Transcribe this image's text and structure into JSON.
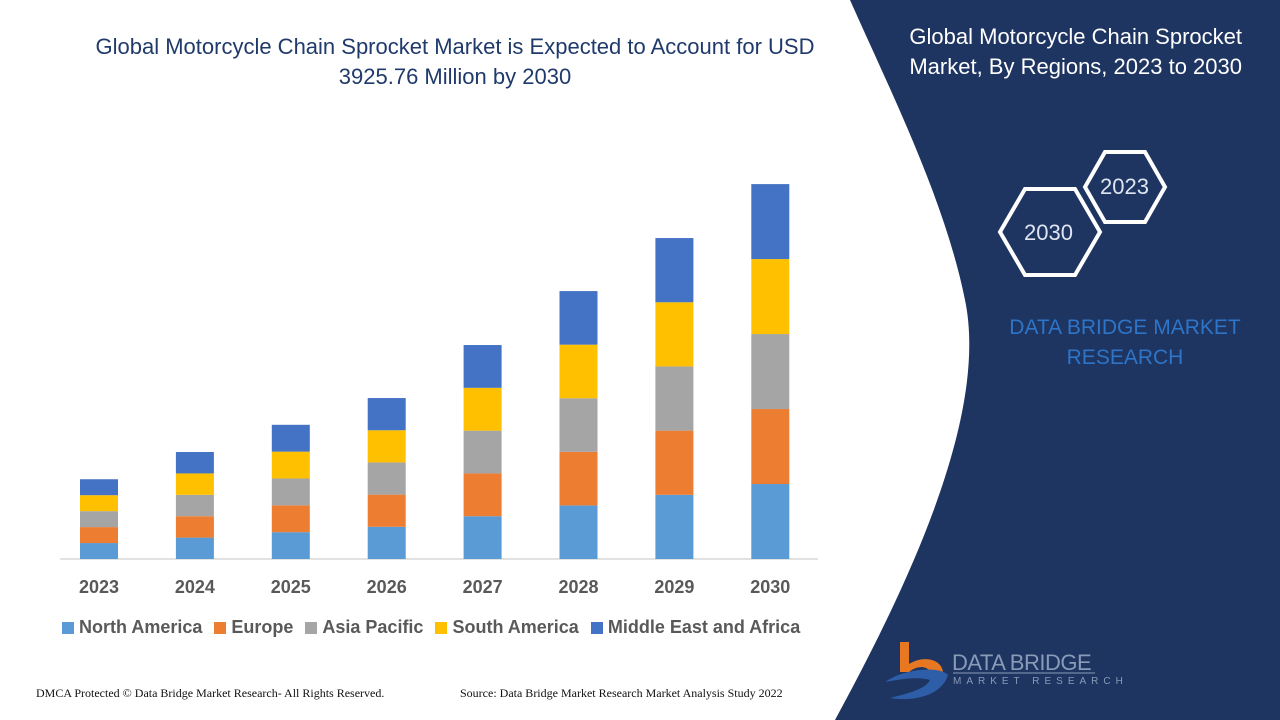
{
  "header": {
    "title": "Global Motorcycle Chain Sprocket Market is Expected to Account for USD 3925.76 Million by 2030"
  },
  "side_panel": {
    "title": "Global Motorcycle Chain Sprocket Market, By Regions, 2023 to 2030",
    "hex_front": "2030",
    "hex_back": "2023",
    "brand": "DATA BRIDGE MARKET RESEARCH"
  },
  "logo": {
    "name": "DATA BRIDGE",
    "tagline": "MARKET RESEARCH"
  },
  "footer": {
    "copyright": "DMCA Protected © Data Bridge Market Research- All Rights Reserved.",
    "source": "Source: Data Bridge Market Research Market Analysis Study 2022"
  },
  "colors": {
    "panel": "#1e3461",
    "accent": "#e87722"
  },
  "chart_data": {
    "type": "bar",
    "stacked": true,
    "grid": false,
    "legend_position": "bottom",
    "categories": [
      "2023",
      "2024",
      "2025",
      "2026",
      "2027",
      "2028",
      "2029",
      "2030"
    ],
    "series": [
      {
        "name": "North America",
        "color": "#5b9bd5",
        "values": [
          167,
          224,
          281,
          337,
          448,
          561,
          672,
          785
        ]
      },
      {
        "name": "Europe",
        "color": "#ed7d31",
        "values": [
          167,
          224,
          281,
          337,
          448,
          561,
          672,
          785
        ]
      },
      {
        "name": "Asia Pacific",
        "color": "#a5a5a5",
        "values": [
          167,
          224,
          281,
          337,
          448,
          561,
          672,
          785
        ]
      },
      {
        "name": "South America",
        "color": "#ffc000",
        "values": [
          167,
          224,
          281,
          337,
          448,
          561,
          672,
          785
        ]
      },
      {
        "name": "Middle East and Africa",
        "color": "#4472c4",
        "values": [
          167,
          224,
          281,
          337,
          448,
          561,
          672,
          785
        ]
      }
    ],
    "ylim": [
      0,
      3926
    ]
  }
}
